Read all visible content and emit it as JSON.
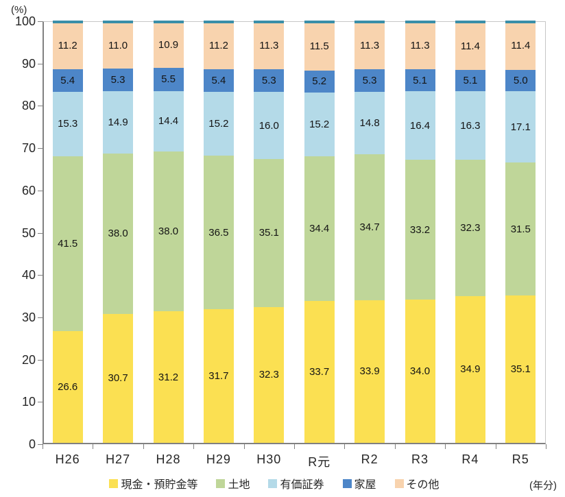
{
  "chart_data": {
    "type": "bar",
    "stacked": true,
    "percent_stacked": true,
    "title": "",
    "y_unit_label": "(%)",
    "x_unit_label": "(年分)",
    "ylabel": "",
    "xlabel": "",
    "ylim": [
      0,
      100
    ],
    "y_ticks": [
      0,
      10,
      20,
      30,
      40,
      50,
      60,
      70,
      80,
      90,
      100
    ],
    "grid": false,
    "legend_position": "bottom",
    "categories": [
      "H26",
      "H27",
      "H28",
      "H29",
      "H30",
      "R元",
      "R2",
      "R3",
      "R4",
      "R5"
    ],
    "series": [
      {
        "name": "現金・預貯金等",
        "color": "#FBE052",
        "values": [
          26.6,
          30.7,
          31.2,
          31.7,
          32.3,
          33.7,
          33.9,
          34.0,
          34.9,
          35.1
        ]
      },
      {
        "name": "土地",
        "color": "#BFD699",
        "values": [
          41.5,
          38.0,
          38.0,
          36.5,
          35.1,
          34.4,
          34.7,
          33.2,
          32.3,
          31.5
        ]
      },
      {
        "name": "有価証券",
        "color": "#B4DAE8",
        "values": [
          15.3,
          14.9,
          14.4,
          15.2,
          16.0,
          15.2,
          14.8,
          16.4,
          16.3,
          17.1
        ]
      },
      {
        "name": "家屋",
        "color": "#4D86C8",
        "values": [
          5.4,
          5.3,
          5.5,
          5.4,
          5.3,
          5.2,
          5.3,
          5.1,
          5.1,
          5.0
        ]
      },
      {
        "name": "その他",
        "color": "#F8D3AE",
        "values": [
          11.2,
          11.0,
          10.9,
          11.2,
          11.3,
          11.5,
          11.3,
          11.3,
          11.4,
          11.4
        ]
      }
    ],
    "bar_top_cap_color": "#3A8FA8",
    "colors": {
      "axis": "#808080",
      "plot_border": "#C6C6C6",
      "text": "#262626"
    }
  }
}
